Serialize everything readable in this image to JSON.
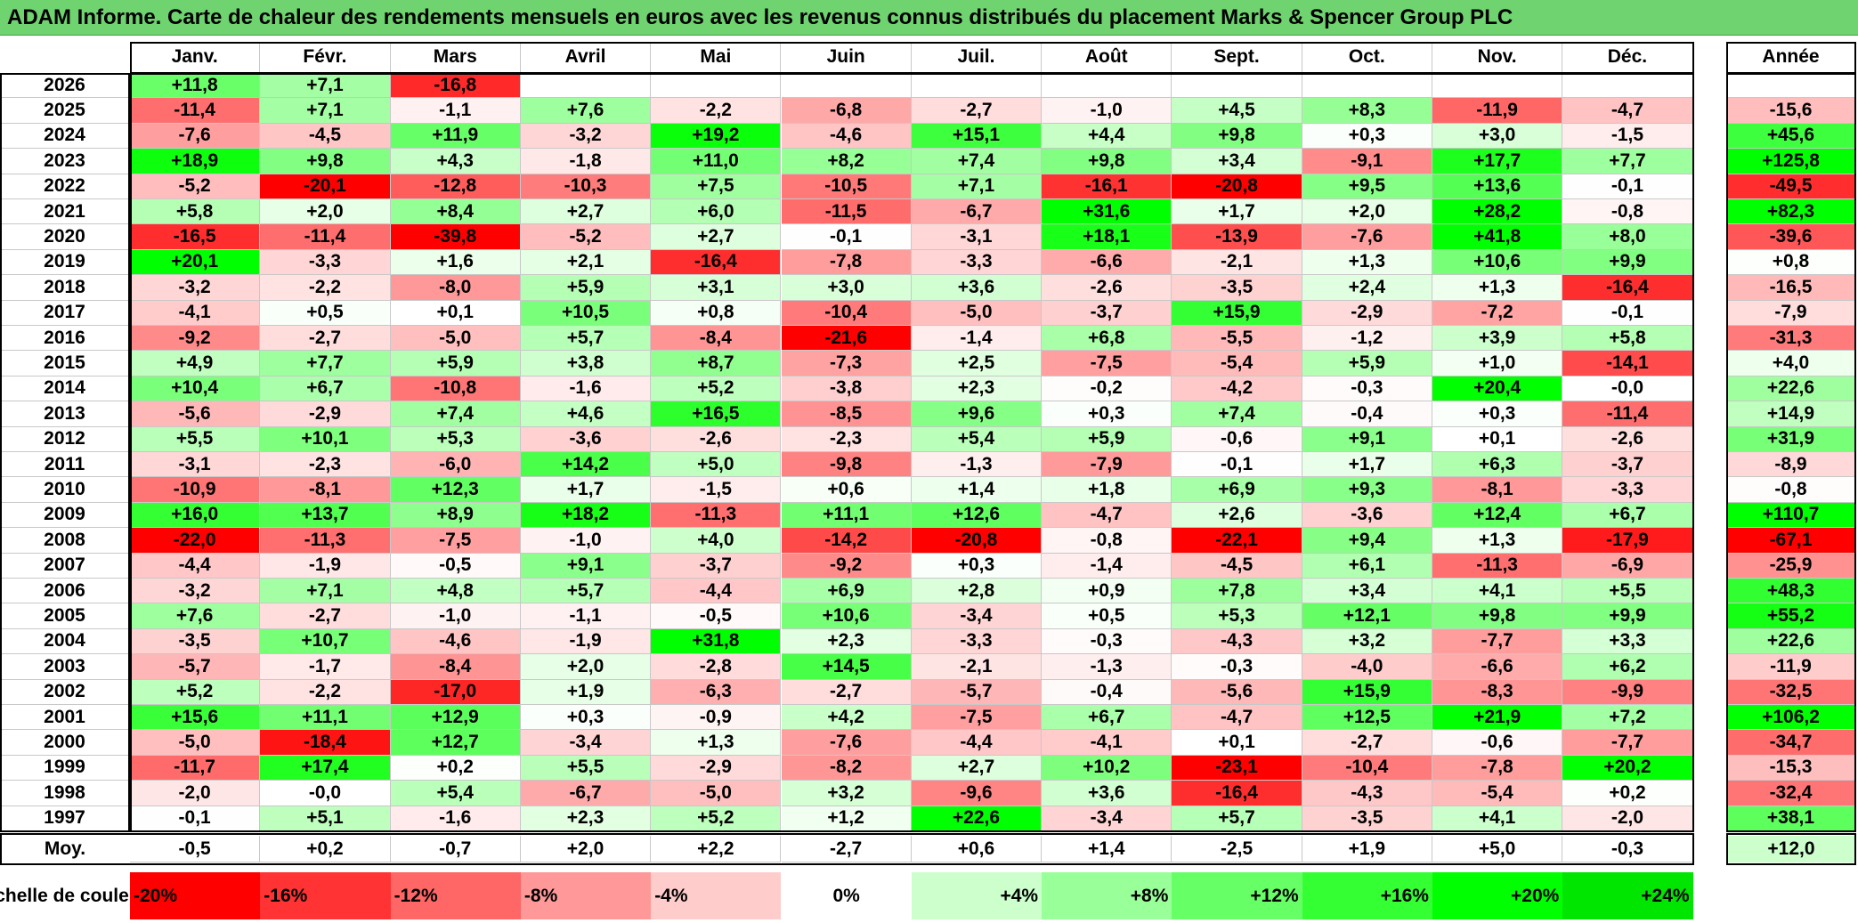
{
  "title": "ADAM Informe. Carte de chaleur des rendements mensuels en euros avec les revenus connus distribués du placement Marks & Spencer Group PLC",
  "chart_data": {
    "type": "heatmap",
    "title": "ADAM Informe. Carte de chaleur des rendements mensuels en euros avec les revenus connus distribués du placement Marks & Spencer Group PLC",
    "columns": [
      "Janv.",
      "Févr.",
      "Mars",
      "Avril",
      "Mai",
      "Juin",
      "Juil.",
      "Août",
      "Sept.",
      "Oct.",
      "Nov.",
      "Déc."
    ],
    "year_column_label": "Année",
    "rows": [
      {
        "year": "2026",
        "values": [
          "+11,8",
          "+7,1",
          "-16,8",
          "",
          "",
          "",
          "",
          "",
          "",
          "",
          "",
          ""
        ],
        "annual": ""
      },
      {
        "year": "2025",
        "values": [
          "-11,4",
          "+7,1",
          "-1,1",
          "+7,6",
          "-2,2",
          "-6,8",
          "-2,7",
          "-1,0",
          "+4,5",
          "+8,3",
          "-11,9",
          "-4,7"
        ],
        "annual": "-15,6"
      },
      {
        "year": "2024",
        "values": [
          "-7,6",
          "-4,5",
          "+11,9",
          "-3,2",
          "+19,2",
          "-4,6",
          "+15,1",
          "+4,4",
          "+9,8",
          "+0,3",
          "+3,0",
          "-1,5"
        ],
        "annual": "+45,6"
      },
      {
        "year": "2023",
        "values": [
          "+18,9",
          "+9,8",
          "+4,3",
          "-1,8",
          "+11,0",
          "+8,2",
          "+7,4",
          "+9,8",
          "+3,4",
          "-9,1",
          "+17,7",
          "+7,7"
        ],
        "annual": "+125,8"
      },
      {
        "year": "2022",
        "values": [
          "-5,2",
          "-20,1",
          "-12,8",
          "-10,3",
          "+7,5",
          "-10,5",
          "+7,1",
          "-16,1",
          "-20,8",
          "+9,5",
          "+13,6",
          "-0,1"
        ],
        "annual": "-49,5"
      },
      {
        "year": "2021",
        "values": [
          "+5,8",
          "+2,0",
          "+8,4",
          "+2,7",
          "+6,0",
          "-11,5",
          "-6,7",
          "+31,6",
          "+1,7",
          "+2,0",
          "+28,2",
          "-0,8"
        ],
        "annual": "+82,3"
      },
      {
        "year": "2020",
        "values": [
          "-16,5",
          "-11,4",
          "-39,8",
          "-5,2",
          "+2,7",
          "-0,1",
          "-3,1",
          "+18,1",
          "-13,9",
          "-7,6",
          "+41,8",
          "+8,0"
        ],
        "annual": "-39,6"
      },
      {
        "year": "2019",
        "values": [
          "+20,1",
          "-3,3",
          "+1,6",
          "+2,1",
          "-16,4",
          "-7,8",
          "-3,3",
          "-6,6",
          "-2,1",
          "+1,3",
          "+10,6",
          "+9,9"
        ],
        "annual": "+0,8"
      },
      {
        "year": "2018",
        "values": [
          "-3,2",
          "-2,2",
          "-8,0",
          "+5,9",
          "+3,1",
          "+3,0",
          "+3,6",
          "-2,6",
          "-3,5",
          "+2,4",
          "+1,3",
          "-16,4"
        ],
        "annual": "-16,5"
      },
      {
        "year": "2017",
        "values": [
          "-4,1",
          "+0,5",
          "+0,1",
          "+10,5",
          "+0,8",
          "-10,4",
          "-5,0",
          "-3,7",
          "+15,9",
          "-2,9",
          "-7,2",
          "-0,1"
        ],
        "annual": "-7,9"
      },
      {
        "year": "2016",
        "values": [
          "-9,2",
          "-2,7",
          "-5,0",
          "+5,7",
          "-8,4",
          "-21,6",
          "-1,4",
          "+6,8",
          "-5,5",
          "-1,2",
          "+3,9",
          "+5,8"
        ],
        "annual": "-31,3"
      },
      {
        "year": "2015",
        "values": [
          "+4,9",
          "+7,7",
          "+5,9",
          "+3,8",
          "+8,7",
          "-7,3",
          "+2,5",
          "-7,5",
          "-5,4",
          "+5,9",
          "+1,0",
          "-14,1"
        ],
        "annual": "+4,0"
      },
      {
        "year": "2014",
        "values": [
          "+10,4",
          "+6,7",
          "-10,8",
          "-1,6",
          "+5,2",
          "-3,8",
          "+2,3",
          "-0,2",
          "-4,2",
          "-0,3",
          "+20,4",
          "-0,0"
        ],
        "annual": "+22,6"
      },
      {
        "year": "2013",
        "values": [
          "-5,6",
          "-2,9",
          "+7,4",
          "+4,6",
          "+16,5",
          "-8,5",
          "+9,6",
          "+0,3",
          "+7,4",
          "-0,4",
          "+0,3",
          "-11,4"
        ],
        "annual": "+14,9"
      },
      {
        "year": "2012",
        "values": [
          "+5,5",
          "+10,1",
          "+5,3",
          "-3,6",
          "-2,6",
          "-2,3",
          "+5,4",
          "+5,9",
          "-0,6",
          "+9,1",
          "+0,1",
          "-2,6"
        ],
        "annual": "+31,9"
      },
      {
        "year": "2011",
        "values": [
          "-3,1",
          "-2,3",
          "-6,0",
          "+14,2",
          "+5,0",
          "-9,8",
          "-1,3",
          "-7,9",
          "-0,1",
          "+1,7",
          "+6,3",
          "-3,7"
        ],
        "annual": "-8,9"
      },
      {
        "year": "2010",
        "values": [
          "-10,9",
          "-8,1",
          "+12,3",
          "+1,7",
          "-1,5",
          "+0,6",
          "+1,4",
          "+1,8",
          "+6,9",
          "+9,3",
          "-8,1",
          "-3,3"
        ],
        "annual": "-0,8"
      },
      {
        "year": "2009",
        "values": [
          "+16,0",
          "+13,7",
          "+8,9",
          "+18,2",
          "-11,3",
          "+11,1",
          "+12,6",
          "-4,7",
          "+2,6",
          "-3,6",
          "+12,4",
          "+6,7"
        ],
        "annual": "+110,7"
      },
      {
        "year": "2008",
        "values": [
          "-22,0",
          "-11,3",
          "-7,5",
          "-1,0",
          "+4,0",
          "-14,2",
          "-20,8",
          "-0,8",
          "-22,1",
          "+9,4",
          "+1,3",
          "-17,9"
        ],
        "annual": "-67,1"
      },
      {
        "year": "2007",
        "values": [
          "-4,4",
          "-1,9",
          "-0,5",
          "+9,1",
          "-3,7",
          "-9,2",
          "+0,3",
          "-1,4",
          "-4,5",
          "+6,1",
          "-11,3",
          "-6,9"
        ],
        "annual": "-25,9"
      },
      {
        "year": "2006",
        "values": [
          "-3,2",
          "+7,1",
          "+4,8",
          "+5,7",
          "-4,4",
          "+6,9",
          "+2,8",
          "+0,9",
          "+7,8",
          "+3,4",
          "+4,1",
          "+5,5"
        ],
        "annual": "+48,3"
      },
      {
        "year": "2005",
        "values": [
          "+7,6",
          "-2,7",
          "-1,0",
          "-1,1",
          "-0,5",
          "+10,6",
          "-3,4",
          "+0,5",
          "+5,3",
          "+12,1",
          "+9,8",
          "+9,9"
        ],
        "annual": "+55,2"
      },
      {
        "year": "2004",
        "values": [
          "-3,5",
          "+10,7",
          "-4,6",
          "-1,9",
          "+31,8",
          "+2,3",
          "-3,3",
          "-0,3",
          "-4,3",
          "+3,2",
          "-7,7",
          "+3,3"
        ],
        "annual": "+22,6"
      },
      {
        "year": "2003",
        "values": [
          "-5,7",
          "-1,7",
          "-8,4",
          "+2,0",
          "-2,8",
          "+14,5",
          "-2,1",
          "-1,3",
          "-0,3",
          "-4,0",
          "-6,6",
          "+6,2"
        ],
        "annual": "-11,9"
      },
      {
        "year": "2002",
        "values": [
          "+5,2",
          "-2,2",
          "-17,0",
          "+1,9",
          "-6,3",
          "-2,7",
          "-5,7",
          "-0,4",
          "-5,6",
          "+15,9",
          "-8,3",
          "-9,9"
        ],
        "annual": "-32,5"
      },
      {
        "year": "2001",
        "values": [
          "+15,6",
          "+11,1",
          "+12,9",
          "+0,3",
          "-0,9",
          "+4,2",
          "-7,5",
          "+6,7",
          "-4,7",
          "+12,5",
          "+21,9",
          "+7,2"
        ],
        "annual": "+106,2"
      },
      {
        "year": "2000",
        "values": [
          "-5,0",
          "-18,4",
          "+12,7",
          "-3,4",
          "+1,3",
          "-7,6",
          "-4,4",
          "-4,1",
          "+0,1",
          "-2,7",
          "-0,6",
          "-7,7"
        ],
        "annual": "-34,7"
      },
      {
        "year": "1999",
        "values": [
          "-11,7",
          "+17,4",
          "+0,2",
          "+5,5",
          "-2,9",
          "-8,2",
          "+2,7",
          "+10,2",
          "-23,1",
          "-10,4",
          "-7,8",
          "+20,2"
        ],
        "annual": "-15,3"
      },
      {
        "year": "1998",
        "values": [
          "-2,0",
          "-0,0",
          "+5,4",
          "-6,7",
          "-5,0",
          "+3,2",
          "-9,6",
          "+3,6",
          "-16,4",
          "-4,3",
          "-5,4",
          "+0,2"
        ],
        "annual": "-32,4"
      },
      {
        "year": "1997",
        "values": [
          "-0,1",
          "+5,1",
          "-1,6",
          "+2,3",
          "+5,2",
          "+1,2",
          "+22,6",
          "-3,4",
          "+5,7",
          "-3,5",
          "+4,1",
          "-2,0"
        ],
        "annual": "+38,1"
      }
    ],
    "average": {
      "label": "Moy.",
      "values": [
        "-0,5",
        "+0,2",
        "-0,7",
        "+2,0",
        "+2,2",
        "-2,7",
        "+0,6",
        "+1,4",
        "-2,5",
        "+1,9",
        "+5,0",
        "-0,3"
      ],
      "annual": "+12,0"
    },
    "scale": {
      "label": "Echelle de couleur",
      "stops": [
        {
          "label": "-20%",
          "color": "#ff0000"
        },
        {
          "label": "-16%",
          "color": "#ff3333"
        },
        {
          "label": "-12%",
          "color": "#ff6666"
        },
        {
          "label": "-8%",
          "color": "#ff9999"
        },
        {
          "label": "-4%",
          "color": "#ffcccc"
        },
        {
          "label": "0%",
          "color": "#ffffff"
        },
        {
          "label": "+4%",
          "color": "#ccffcc"
        },
        {
          "label": "+8%",
          "color": "#99ff99"
        },
        {
          "label": "+12%",
          "color": "#66ff66"
        },
        {
          "label": "+16%",
          "color": "#33ff33"
        },
        {
          "label": "+20%",
          "color": "#00ff00"
        },
        {
          "label": "+24%",
          "color": "#00e600"
        }
      ]
    },
    "color_scale": {
      "negative_full": "#ff0000",
      "zero": "#ffffff",
      "positive_full": "#00ff00",
      "monthly_saturation_percent": 20,
      "annual_saturation_percent": 60
    }
  }
}
